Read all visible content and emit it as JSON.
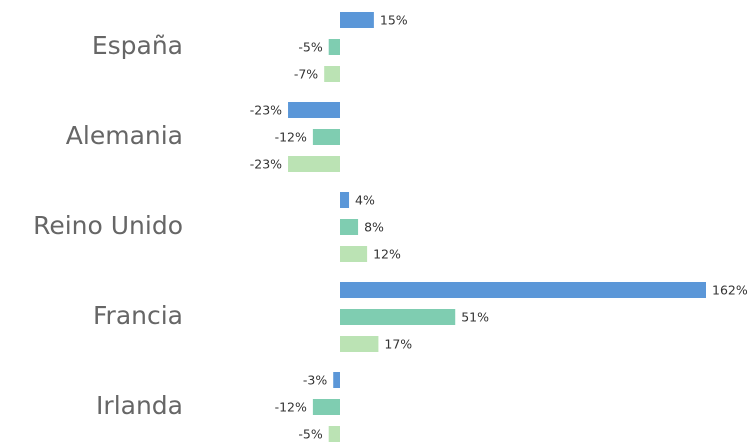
{
  "chart_data": {
    "type": "bar",
    "orientation": "horizontal",
    "categories": [
      "España",
      "Alemania",
      "Reino Unido",
      "Francia",
      "Irlanda"
    ],
    "series": [
      {
        "color": "#5b97d8",
        "values": [
          15,
          -23,
          4,
          162,
          -3
        ],
        "value_labels": [
          "15%",
          "-23%",
          "4%",
          "162%",
          "-3%"
        ]
      },
      {
        "color": "#7fcdb1",
        "values": [
          -5,
          -12,
          8,
          51,
          -12
        ],
        "value_labels": [
          "-5%",
          "-12%",
          "8%",
          "51%",
          "-12%"
        ]
      },
      {
        "color": "#bbe3b4",
        "values": [
          -7,
          -23,
          12,
          17,
          -5
        ],
        "value_labels": [
          "-7%",
          "-23%",
          "12%",
          "17%",
          "-5%"
        ]
      }
    ]
  }
}
